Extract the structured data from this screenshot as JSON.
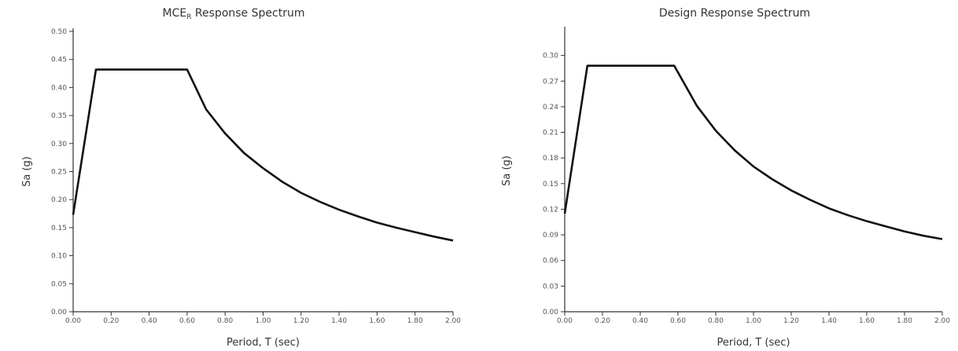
{
  "chart_data": [
    {
      "type": "line",
      "title": "MCE",
      "title_subscript": "R",
      "title_suffix": " Response Spectrum",
      "xlabel": "Period, T (sec)",
      "ylabel": "Sa (g)",
      "xlim": [
        0,
        2.0
      ],
      "ylim": [
        0,
        0.5
      ],
      "xticks": [
        "0.00",
        "0.20",
        "0.40",
        "0.60",
        "0.80",
        "1.00",
        "1.20",
        "1.40",
        "1.60",
        "1.80",
        "2.00"
      ],
      "yticks": [
        "0.00",
        "0.05",
        "0.10",
        "0.15",
        "0.20",
        "0.25",
        "0.30",
        "0.35",
        "0.40",
        "0.45",
        "0.50"
      ],
      "grid": false,
      "series": [
        {
          "x": [
            0.0,
            0.12,
            0.6,
            0.7,
            0.8,
            0.9,
            1.0,
            1.1,
            1.2,
            1.3,
            1.4,
            1.5,
            1.6,
            1.7,
            1.8,
            1.9,
            2.0
          ],
          "y": [
            0.173,
            0.432,
            0.432,
            0.361,
            0.318,
            0.283,
            0.256,
            0.232,
            0.212,
            0.196,
            0.182,
            0.17,
            0.159,
            0.15,
            0.142,
            0.134,
            0.127
          ]
        }
      ]
    },
    {
      "type": "line",
      "title": "Design Response Spectrum",
      "xlabel": "Period, T (sec)",
      "ylabel": "Sa (g)",
      "xlim": [
        0,
        2.0
      ],
      "ylim": [
        0,
        0.33
      ],
      "xticks": [
        "0.00",
        "0.20",
        "0.40",
        "0.60",
        "0.80",
        "1.00",
        "1.20",
        "1.40",
        "1.60",
        "1.80",
        "2.00"
      ],
      "yticks": [
        "0.00",
        "0.03",
        "0.06",
        "0.09",
        "0.12",
        "0.15",
        "0.18",
        "0.21",
        "0.24",
        "0.27",
        "0.30"
      ],
      "grid": false,
      "series": [
        {
          "x": [
            0.0,
            0.12,
            0.58,
            0.7,
            0.8,
            0.9,
            1.0,
            1.1,
            1.2,
            1.3,
            1.4,
            1.5,
            1.6,
            1.7,
            1.8,
            1.9,
            2.0
          ],
          "y": [
            0.115,
            0.288,
            0.288,
            0.241,
            0.212,
            0.189,
            0.17,
            0.155,
            0.142,
            0.131,
            0.121,
            0.113,
            0.106,
            0.1,
            0.094,
            0.089,
            0.085
          ]
        }
      ]
    }
  ]
}
